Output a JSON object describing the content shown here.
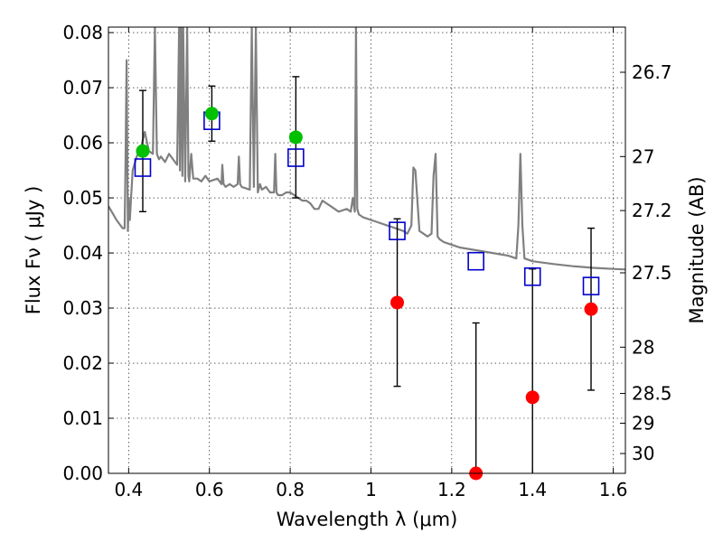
{
  "chart_data": {
    "type": "scatter",
    "xlabel": "Wavelength  λ (μm)",
    "ylabel": "Flux  Fν  ( μJy )",
    "ylabel_right": "Magnitude (AB)",
    "xlim": [
      0.35,
      1.63
    ],
    "ylim": [
      0.0,
      0.081
    ],
    "grid": true,
    "x_ticks": [
      {
        "value": 0.4,
        "label": "0.4"
      },
      {
        "value": 0.6,
        "label": "0.6"
      },
      {
        "value": 0.8,
        "label": "0.8"
      },
      {
        "value": 1.0,
        "label": "1"
      },
      {
        "value": 1.2,
        "label": "1.2"
      },
      {
        "value": 1.4,
        "label": "1.4"
      },
      {
        "value": 1.6,
        "label": "1.6"
      }
    ],
    "y_ticks": [
      {
        "value": 0.0,
        "label": "0.00"
      },
      {
        "value": 0.01,
        "label": "0.01"
      },
      {
        "value": 0.02,
        "label": "0.02"
      },
      {
        "value": 0.03,
        "label": "0.03"
      },
      {
        "value": 0.04,
        "label": "0.04"
      },
      {
        "value": 0.05,
        "label": "0.05"
      },
      {
        "value": 0.06,
        "label": "0.06"
      },
      {
        "value": 0.07,
        "label": "0.07"
      },
      {
        "value": 0.08,
        "label": "0.08"
      }
    ],
    "right_ticks": [
      {
        "flux": 0.0728,
        "label": "26.7"
      },
      {
        "flux": 0.0575,
        "label": "27"
      },
      {
        "flux": 0.0477,
        "label": "27.2"
      },
      {
        "flux": 0.0364,
        "label": "27.5"
      },
      {
        "flux": 0.0229,
        "label": "28"
      },
      {
        "flux": 0.0145,
        "label": "28.5"
      },
      {
        "flux": 0.0091,
        "label": "29"
      },
      {
        "flux": 0.0036,
        "label": "30"
      }
    ],
    "observed": [
      {
        "x": 0.435,
        "y": 0.0585,
        "err": 0.011,
        "color": "#00c000"
      },
      {
        "x": 0.606,
        "y": 0.0653,
        "err": 0.005,
        "color": "#00c000"
      },
      {
        "x": 0.814,
        "y": 0.061,
        "err": 0.011,
        "color": "#00c000"
      },
      {
        "x": 1.065,
        "y": 0.031,
        "err": 0.0152,
        "color": "#ff0000"
      },
      {
        "x": 1.26,
        "y": 0.0,
        "err": 0.0273,
        "color": "#ff0000"
      },
      {
        "x": 1.4,
        "y": 0.0138,
        "err": 0.0233,
        "color": "#ff0000"
      },
      {
        "x": 1.545,
        "y": 0.0298,
        "err": 0.0147,
        "color": "#ff0000"
      }
    ],
    "model_boxes": [
      {
        "x": 0.435,
        "y": 0.0555
      },
      {
        "x": 0.606,
        "y": 0.064
      },
      {
        "x": 0.814,
        "y": 0.0573
      },
      {
        "x": 1.065,
        "y": 0.044
      },
      {
        "x": 1.26,
        "y": 0.0385
      },
      {
        "x": 1.4,
        "y": 0.0357
      },
      {
        "x": 1.545,
        "y": 0.034
      }
    ],
    "sed": {
      "color": "#808080",
      "x": [
        0.35,
        0.37,
        0.385,
        0.39,
        0.392,
        0.395,
        0.398,
        0.4,
        0.403,
        0.406,
        0.41,
        0.42,
        0.43,
        0.44,
        0.45,
        0.46,
        0.465,
        0.47,
        0.475,
        0.48,
        0.49,
        0.5,
        0.51,
        0.52,
        0.525,
        0.527,
        0.53,
        0.533,
        0.535,
        0.54,
        0.545,
        0.548,
        0.55,
        0.555,
        0.56,
        0.57,
        0.58,
        0.59,
        0.6,
        0.62,
        0.63,
        0.632,
        0.635,
        0.64,
        0.65,
        0.66,
        0.67,
        0.673,
        0.676,
        0.68,
        0.7,
        0.705,
        0.71,
        0.715,
        0.72,
        0.725,
        0.73,
        0.74,
        0.75,
        0.76,
        0.763,
        0.766,
        0.77,
        0.78,
        0.79,
        0.8,
        0.81,
        0.82,
        0.83,
        0.84,
        0.85,
        0.86,
        0.87,
        0.88,
        0.9,
        0.92,
        0.94,
        0.95,
        0.955,
        0.96,
        0.963,
        0.966,
        0.97,
        0.98,
        1.0,
        1.02,
        1.04,
        1.06,
        1.08,
        1.09,
        1.1,
        1.105,
        1.11,
        1.12,
        1.13,
        1.14,
        1.15,
        1.155,
        1.16,
        1.165,
        1.17,
        1.18,
        1.2,
        1.22,
        1.26,
        1.3,
        1.34,
        1.36,
        1.365,
        1.37,
        1.375,
        1.38,
        1.4,
        1.45,
        1.5,
        1.55,
        1.6,
        1.63
      ],
      "y": [
        0.0485,
        0.046,
        0.0445,
        0.0445,
        0.055,
        0.075,
        0.044,
        0.05,
        0.046,
        0.05,
        0.055,
        0.0575,
        0.059,
        0.062,
        0.0585,
        0.058,
        0.081,
        0.058,
        0.057,
        0.0575,
        0.0565,
        0.058,
        0.057,
        0.056,
        0.081,
        0.055,
        0.081,
        0.054,
        0.081,
        0.053,
        0.081,
        0.054,
        0.053,
        0.058,
        0.0535,
        0.0535,
        0.053,
        0.054,
        0.053,
        0.0535,
        0.0525,
        0.056,
        0.0525,
        0.052,
        0.0525,
        0.052,
        0.0525,
        0.0575,
        0.0525,
        0.052,
        0.0515,
        0.081,
        0.052,
        0.081,
        0.051,
        0.0525,
        0.0515,
        0.052,
        0.051,
        0.051,
        0.058,
        0.051,
        0.0505,
        0.0505,
        0.051,
        0.051,
        0.0505,
        0.05,
        0.0495,
        0.0495,
        0.049,
        0.048,
        0.048,
        0.0495,
        0.0485,
        0.0475,
        0.048,
        0.0475,
        0.05,
        0.0475,
        0.081,
        0.048,
        0.047,
        0.0465,
        0.046,
        0.0455,
        0.045,
        0.0445,
        0.044,
        0.0435,
        0.045,
        0.0555,
        0.055,
        0.044,
        0.0435,
        0.043,
        0.0435,
        0.054,
        0.058,
        0.043,
        0.0425,
        0.042,
        0.0415,
        0.041,
        0.0405,
        0.04,
        0.0395,
        0.039,
        0.045,
        0.058,
        0.045,
        0.039,
        0.0385,
        0.038,
        0.0376,
        0.0373,
        0.0371,
        0.037
      ]
    }
  }
}
